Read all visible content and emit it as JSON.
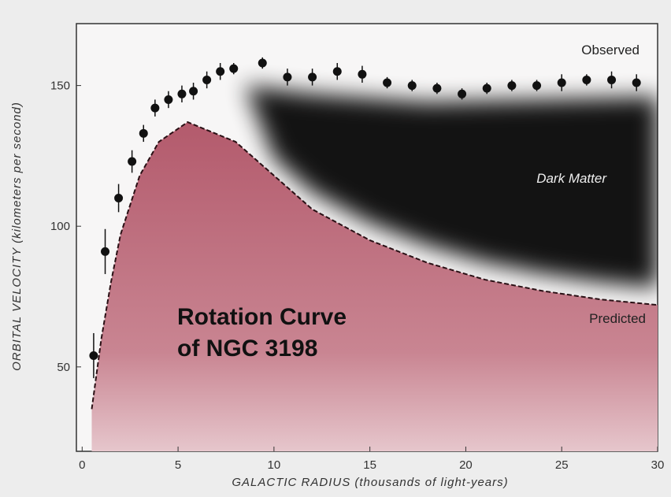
{
  "chart_data": {
    "type": "scatter",
    "title_lines": [
      "Rotation Curve",
      "of NGC 3198"
    ],
    "x_label": "GALACTIC RADIUS (thousands of light-years)",
    "y_label": "ORBITAL VELOCITY (kilometers per second)",
    "annotations": [
      "Observed",
      "Dark Matter",
      "Predicted"
    ],
    "xlim": [
      -0.3,
      30
    ],
    "xticks": [
      0,
      5,
      10,
      15,
      20,
      25,
      30
    ],
    "ylim": [
      20,
      172
    ],
    "yticks": [
      50,
      100,
      150
    ],
    "series": [
      {
        "name": "Observed",
        "color": "#111111",
        "x": [
          0.6,
          1.2,
          1.9,
          2.6,
          3.2,
          3.8,
          4.5,
          5.2,
          5.8,
          6.5,
          7.2,
          7.9,
          9.4,
          10.7,
          12,
          13.3,
          14.6,
          15.9,
          17.2,
          18.5,
          19.8,
          21.1,
          22.4,
          23.7,
          25,
          26.3,
          27.6,
          28.9
        ],
        "values": [
          54,
          91,
          110,
          123,
          133,
          142,
          145,
          147,
          148,
          152,
          155,
          156,
          158,
          153,
          153,
          155,
          154,
          151,
          150,
          149,
          147,
          149,
          150,
          150,
          151,
          152,
          152,
          151
        ],
        "errors": [
          8,
          8,
          5,
          4,
          3,
          3,
          3,
          3,
          3,
          3,
          3,
          2,
          2,
          3,
          3,
          3,
          3,
          2,
          2,
          2,
          2,
          2,
          2,
          2,
          3,
          2,
          3,
          3
        ]
      },
      {
        "name": "Predicted",
        "color": "#b5606e",
        "x": [
          0.5,
          1,
          1.5,
          2,
          3,
          4,
          5.5,
          8,
          10,
          12,
          15,
          18,
          21,
          24,
          27,
          30
        ],
        "values": [
          35,
          60,
          80,
          97,
          118,
          130,
          137,
          130,
          118,
          106,
          95,
          87,
          81,
          77,
          74,
          72
        ]
      }
    ]
  }
}
